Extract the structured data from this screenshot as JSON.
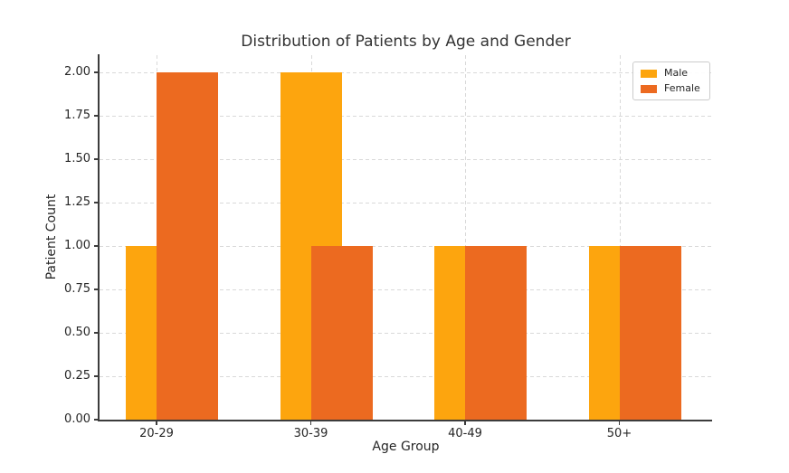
{
  "chart_data": {
    "type": "bar",
    "title": "Distribution of Patients by Age and Gender",
    "xlabel": "Age Group",
    "ylabel": "Patient Count",
    "categories": [
      "20-29",
      "30-39",
      "40-49",
      "50+"
    ],
    "series": [
      {
        "name": "Male",
        "color": "#FDA50E",
        "values": [
          1,
          2,
          1,
          1
        ]
      },
      {
        "name": "Female",
        "color": "#EC6A20",
        "values": [
          2,
          1,
          1,
          1
        ]
      }
    ],
    "ylim": [
      0,
      2.1
    ],
    "y_tick_step": 0.25,
    "y_tick_labels": [
      "0.00",
      "0.25",
      "0.50",
      "0.75",
      "1.00",
      "1.25",
      "1.50",
      "1.75",
      "2.00"
    ],
    "grid": "dashed horizontal and vertical",
    "legend": {
      "position": "upper-right",
      "entries": [
        "Male",
        "Female"
      ]
    },
    "bar_overlap": "Female bars offset +half width, drawn over Male bars"
  }
}
